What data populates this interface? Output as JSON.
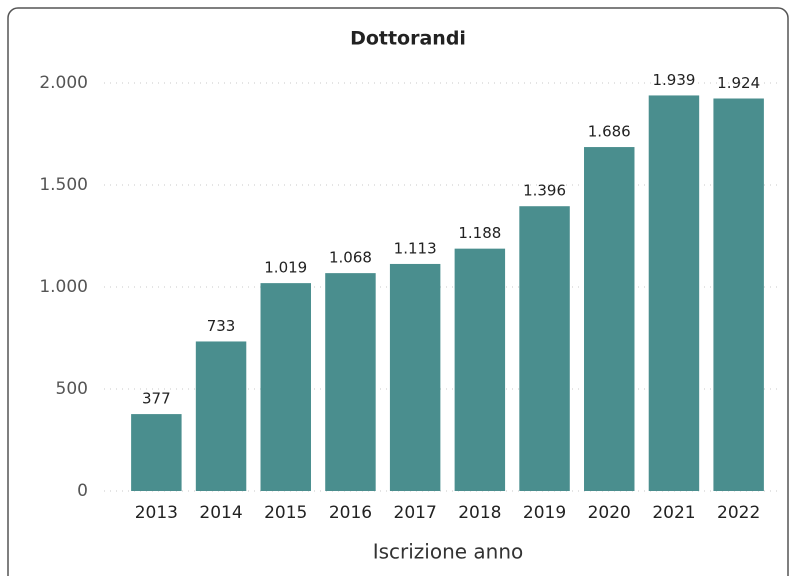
{
  "chart_data": {
    "type": "bar",
    "title": "Dottorandi",
    "x_label": "Iscrizione anno",
    "categories": [
      "2013",
      "2014",
      "2015",
      "2016",
      "2017",
      "2018",
      "2019",
      "2020",
      "2021",
      "2022"
    ],
    "values": [
      377,
      733,
      1019,
      1068,
      1113,
      1188,
      1396,
      1686,
      1939,
      1924
    ],
    "value_labels": [
      "377",
      "733",
      "1.019",
      "1.068",
      "1.113",
      "1.188",
      "1.396",
      "1.686",
      "1.939",
      "1.924"
    ],
    "color": "#4a8e8e",
    "ylim": [
      0,
      2000
    ],
    "yticks": [
      0,
      500,
      {
        "value": 1000,
        "label": "1.000"
      },
      {
        "value": 1500,
        "label": "1.500"
      },
      {
        "value": 2000,
        "label": "2.000"
      }
    ],
    "grid": true
  }
}
